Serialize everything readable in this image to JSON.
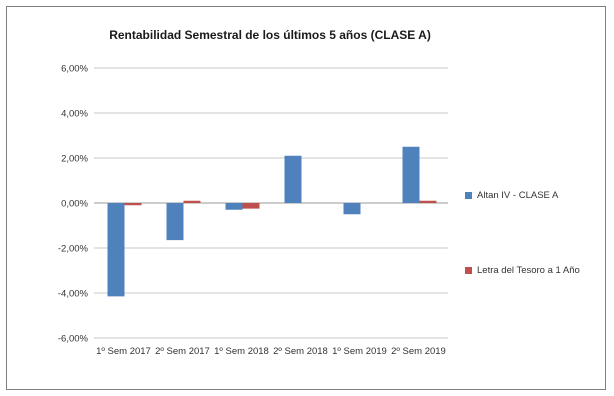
{
  "chart_data": {
    "type": "bar",
    "title": "Rentabilidad Semestral de los últimos 5 años (CLASE A)",
    "categories": [
      "1º Sem 2017",
      "2º Sem 2017",
      "1º Sem 2018",
      "2º Sem 2018",
      "1º Sem 2019",
      "2º Sem 2019"
    ],
    "series": [
      {
        "name": "Altan IV - CLASE A",
        "values": [
          -4.15,
          -1.65,
          -0.3,
          2.1,
          -0.5,
          2.5
        ],
        "color": "#4f81bd"
      },
      {
        "name": "Letra del Tesoro a 1 Año",
        "values": [
          -0.1,
          0.1,
          -0.25,
          0.0,
          0.0,
          0.1
        ],
        "color": "#c0504d"
      }
    ],
    "ylim": [
      -6,
      6
    ],
    "yticks": [
      "6,00%",
      "4,00%",
      "2,00%",
      "0,00%",
      "-2,00%",
      "-4,00%",
      "-6,00%"
    ],
    "ytick_values": [
      6,
      4,
      2,
      0,
      -2,
      -4,
      -6
    ],
    "xlabel": "",
    "ylabel": "",
    "grid": true,
    "legend_position": "right"
  }
}
